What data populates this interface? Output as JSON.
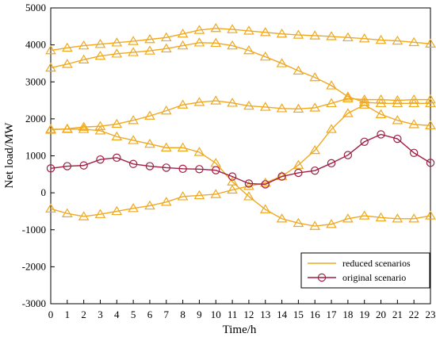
{
  "chart_data": {
    "type": "line",
    "xlabel": "Time/h",
    "ylabel": "Net load/MW",
    "xlim": [
      0,
      23
    ],
    "ylim": [
      -3000,
      5000
    ],
    "x_ticks": [
      0,
      1,
      2,
      3,
      4,
      5,
      6,
      7,
      8,
      9,
      10,
      11,
      12,
      13,
      14,
      15,
      16,
      17,
      18,
      19,
      20,
      21,
      22,
      23
    ],
    "y_ticks": [
      -3000,
      -2000,
      -1000,
      0,
      1000,
      2000,
      3000,
      4000,
      5000
    ],
    "grid": false,
    "legend_position": "bottom-right",
    "legend": [
      "reduced scenarios",
      "original scenario"
    ],
    "colors": {
      "reduced": "#F0A81E",
      "original": "#A01E44"
    },
    "x": [
      0,
      1,
      2,
      3,
      4,
      5,
      6,
      7,
      8,
      9,
      10,
      11,
      12,
      13,
      14,
      15,
      16,
      17,
      18,
      19,
      20,
      21,
      22,
      23
    ],
    "series": [
      {
        "name": "reduced scenarios",
        "marker": "triangle",
        "values": [
          3850,
          3920,
          3980,
          4020,
          4060,
          4100,
          4150,
          4200,
          4300,
          4400,
          4450,
          4420,
          4380,
          4340,
          4300,
          4270,
          4250,
          4230,
          4200,
          4170,
          4130,
          4110,
          4070,
          4030
        ]
      },
      {
        "name": "reduced scenarios",
        "marker": "triangle",
        "values": [
          3380,
          3480,
          3600,
          3700,
          3760,
          3800,
          3840,
          3900,
          3980,
          4060,
          4050,
          3980,
          3850,
          3680,
          3500,
          3300,
          3120,
          2900,
          2600,
          2450,
          2420,
          2420,
          2420,
          2420
        ]
      },
      {
        "name": "reduced scenarios",
        "marker": "triangle",
        "values": [
          1700,
          1730,
          1780,
          1800,
          1860,
          1960,
          2080,
          2220,
          2380,
          2450,
          2490,
          2430,
          2350,
          2320,
          2280,
          2270,
          2300,
          2420,
          2550,
          2520,
          2520,
          2500,
          2520,
          2520
        ]
      },
      {
        "name": "reduced scenarios",
        "marker": "triangle",
        "values": [
          1720,
          1720,
          1720,
          1680,
          1520,
          1420,
          1320,
          1220,
          1220,
          1100,
          800,
          300,
          -100,
          -450,
          -700,
          -820,
          -900,
          -850,
          -700,
          -620,
          -670,
          -700,
          -700,
          -620
        ]
      },
      {
        "name": "reduced scenarios",
        "marker": "triangle",
        "values": [
          -430,
          -560,
          -640,
          -580,
          -500,
          -420,
          -350,
          -250,
          -100,
          -70,
          -40,
          80,
          180,
          270,
          450,
          750,
          1150,
          1720,
          2150,
          2380,
          2120,
          1960,
          1850,
          1820
        ]
      },
      {
        "name": "original scenario",
        "marker": "circle",
        "values": [
          660,
          720,
          740,
          900,
          950,
          780,
          720,
          680,
          650,
          640,
          610,
          440,
          250,
          230,
          440,
          540,
          600,
          800,
          1020,
          1380,
          1580,
          1460,
          1080,
          810
        ]
      }
    ]
  }
}
